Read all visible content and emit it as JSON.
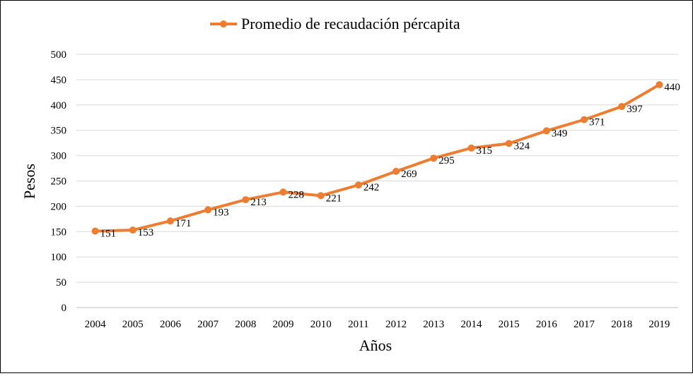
{
  "chart_data": {
    "type": "line",
    "title": "",
    "xlabel": "Años",
    "ylabel": "Pesos",
    "ylim": [
      0,
      500
    ],
    "yticks": [
      "0",
      "50",
      "100",
      "150",
      "200",
      "250",
      "300",
      "350",
      "400",
      "450",
      "500"
    ],
    "grid": true,
    "legend_position": "top-center",
    "categories": [
      "2004",
      "2005",
      "2006",
      "2007",
      "2008",
      "2009",
      "2010",
      "2011",
      "2012",
      "2013",
      "2014",
      "2015",
      "2016",
      "2017",
      "2018",
      "2019"
    ],
    "series": [
      {
        "name": "Promedio de recaudación pércapita",
        "color": "#ED7D31",
        "values": [
          151,
          153,
          171,
          193,
          213,
          228,
          221,
          242,
          269,
          295,
          315,
          324,
          349,
          371,
          397,
          440
        ],
        "labels": [
          "151",
          "153",
          "171",
          "193",
          "213",
          "228",
          "221",
          "242",
          "269",
          "295",
          "315",
          "324",
          "349",
          "371",
          "397",
          "440"
        ]
      }
    ]
  }
}
